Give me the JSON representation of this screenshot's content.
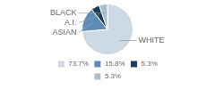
{
  "chart_data": {
    "type": "pie",
    "categories": [
      "WHITE",
      "ASIAN",
      "A.I.",
      "BLACK"
    ],
    "values": [
      73.7,
      15.8,
      5.3,
      5.3
    ],
    "value_labels": [
      "73.7%",
      "15.8%",
      "5.3%",
      "5.3%"
    ],
    "colors": [
      "#cdd9e5",
      "#5b8db8",
      "#1b3a5c",
      "#a8bfcc"
    ],
    "legend": "bottom"
  }
}
